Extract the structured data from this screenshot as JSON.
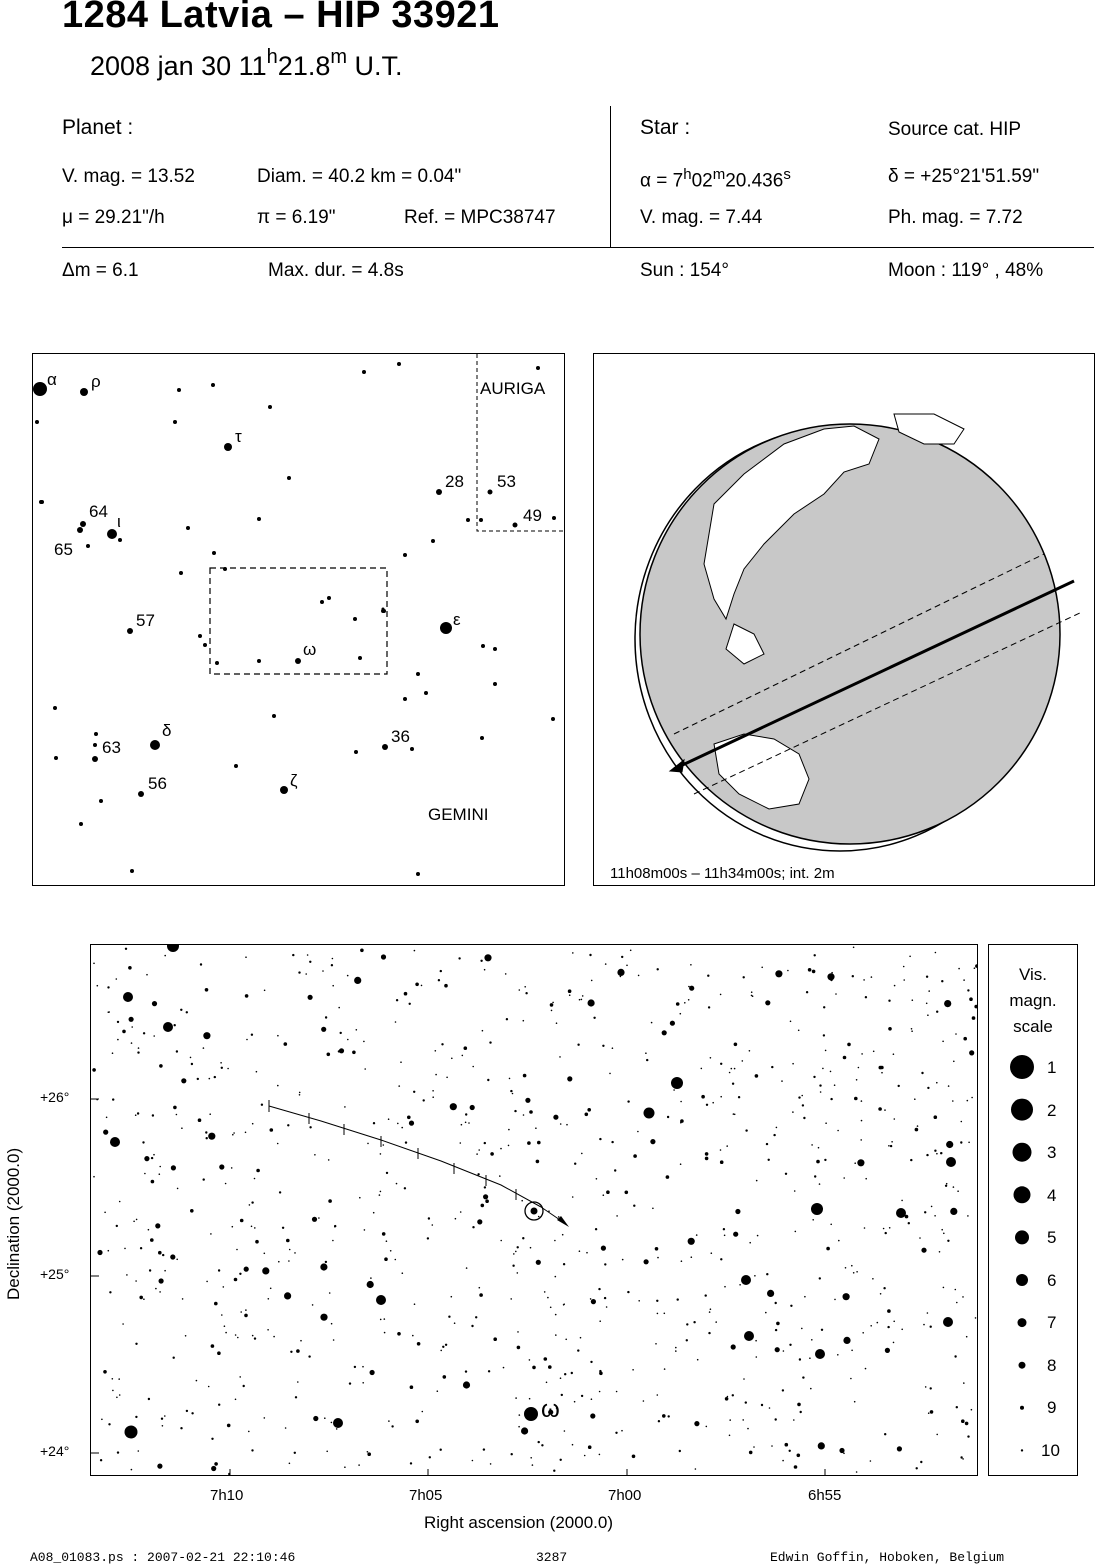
{
  "header": {
    "title": "1284 Latvia  –  HIP 33921",
    "subtitle_date": "2008 jan 30  11",
    "subtitle_h": "h",
    "subtitle_min": "21.8",
    "subtitle_m": "m",
    "subtitle_ut": " U.T."
  },
  "planet": {
    "heading": "Planet :",
    "vmag": "V. mag. = 13.52",
    "diam": "Diam. = 40.2 km = 0.04\"",
    "mu": "μ =  29.21\"/h",
    "pi": "π =  6.19\"",
    "ref": "Ref. = MPC38747"
  },
  "star": {
    "heading": "Star :",
    "source": "Source cat.  HIP",
    "alpha_prefix": "α =  7",
    "alpha_h": "h",
    "alpha_mid": "02",
    "alpha_m": "m",
    "alpha_sec": "20.436",
    "alpha_s": "s",
    "delta": "δ = +25°21'51.59\"",
    "vmag": "V. mag. =  7.44",
    "phmag": "Ph. mag. =  7.72"
  },
  "summary": {
    "dm": "Δm = 6.1",
    "maxdur": "Max. dur. = 4.8s",
    "sun": "Sun : 154°",
    "moon": "Moon : 119° , 48%"
  },
  "finder": {
    "labels": {
      "alpha": "α",
      "rho": "ρ",
      "tau": "τ",
      "iota": "ι",
      "epsilon": "ε",
      "omega": "ω",
      "delta": "δ",
      "zeta": "ζ",
      "n64": "64",
      "n65": "65",
      "n57": "57",
      "n63": "63",
      "n56": "56",
      "n28": "28",
      "n53": "53",
      "n49": "49",
      "n36": "36"
    },
    "auriga": "AURIGA",
    "gemini": "GEMINI"
  },
  "globe": {
    "caption": "11h08m00s – 11h34m00s; int.  2m"
  },
  "chart": {
    "ylabel": "Declination (2000.0)",
    "xlabel": "Right ascension (2000.0)",
    "yticks": [
      "+26°",
      "+25°",
      "+24°"
    ],
    "xticks": [
      "7h10",
      "7h05",
      "7h00",
      "6h55"
    ],
    "omega_label": "ω"
  },
  "scale": {
    "title1": "Vis.",
    "title2": "magn.",
    "title3": "scale",
    "entries": [
      "1",
      "2",
      "3",
      "4",
      "5",
      "6",
      "7",
      "8",
      "9",
      "10"
    ]
  },
  "footer": {
    "left": "A08_01083.ps : 2007-02-21 22:10:46",
    "mid": "3287",
    "right": "Edwin Goffin, Hoboken, Belgium"
  }
}
